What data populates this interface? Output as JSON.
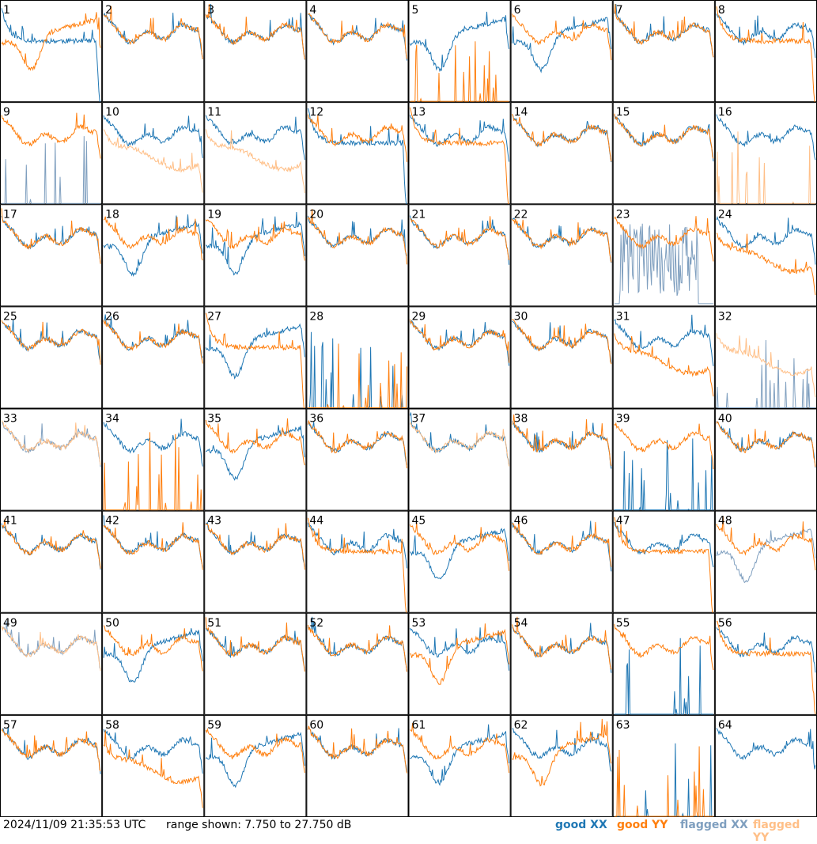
{
  "footer": {
    "timestamp": "2024/11/09 21:35:53 UTC",
    "range_text": "range shown: 7.750 to 27.750 dB"
  },
  "legend": [
    {
      "key": "good_xx",
      "label": "good XX",
      "color": "#1f77b4"
    },
    {
      "key": "good_yy",
      "label": "good YY",
      "color": "#ff7f0e"
    },
    {
      "key": "flagged_xx",
      "label": "flagged XX",
      "color": "#7f9fbf"
    },
    {
      "key": "flagged_yy",
      "label": "flagged YY",
      "color": "#ffbf87"
    }
  ],
  "chart_data": {
    "type": "line",
    "title": "",
    "xlabel": "",
    "ylabel": "",
    "ylim": [
      7.75,
      27.75
    ],
    "y_unit": "dB",
    "grid_rows": 8,
    "grid_cols": 8,
    "panels": [
      {
        "label": "1",
        "xx": {
          "shape": "flat_high",
          "flag": false
        },
        "yy": {
          "shape": "low_dip",
          "flag": false
        }
      },
      {
        "label": "2",
        "xx": {
          "shape": "standard",
          "flag": false
        },
        "yy": {
          "shape": "standard",
          "flag": false
        }
      },
      {
        "label": "3",
        "xx": {
          "shape": "standard",
          "flag": false
        },
        "yy": {
          "shape": "standard",
          "flag": false
        }
      },
      {
        "label": "4",
        "xx": {
          "shape": "standard",
          "flag": false
        },
        "yy": {
          "shape": "standard",
          "flag": false
        }
      },
      {
        "label": "5",
        "xx": {
          "shape": "low_dip",
          "flag": false
        },
        "yy": {
          "shape": "spiky_dead",
          "flag": false
        }
      },
      {
        "label": "6",
        "xx": {
          "shape": "low_dip",
          "flag": false
        },
        "yy": {
          "shape": "standard",
          "flag": false
        }
      },
      {
        "label": "7",
        "xx": {
          "shape": "standard",
          "flag": false
        },
        "yy": {
          "shape": "standard",
          "flag": false
        }
      },
      {
        "label": "8",
        "xx": {
          "shape": "standard",
          "flag": false
        },
        "yy": {
          "shape": "flat_high",
          "flag": false
        }
      },
      {
        "label": "9",
        "xx": {
          "shape": "spiky_dead",
          "flag": true
        },
        "yy": {
          "shape": "standard",
          "flag": false
        }
      },
      {
        "label": "10",
        "xx": {
          "shape": "standard",
          "flag": false
        },
        "yy": {
          "shape": "low_flat",
          "flag": true
        }
      },
      {
        "label": "11",
        "xx": {
          "shape": "standard",
          "flag": false
        },
        "yy": {
          "shape": "low_flat",
          "flag": true
        }
      },
      {
        "label": "12",
        "xx": {
          "shape": "flat_high",
          "flag": false
        },
        "yy": {
          "shape": "standard",
          "flag": false
        }
      },
      {
        "label": "13",
        "xx": {
          "shape": "standard",
          "flag": false
        },
        "yy": {
          "shape": "flat_high",
          "flag": false
        }
      },
      {
        "label": "14",
        "xx": {
          "shape": "standard",
          "flag": false
        },
        "yy": {
          "shape": "standard",
          "flag": false
        }
      },
      {
        "label": "15",
        "xx": {
          "shape": "standard",
          "flag": false
        },
        "yy": {
          "shape": "standard",
          "flag": false
        }
      },
      {
        "label": "16",
        "xx": {
          "shape": "standard",
          "flag": false
        },
        "yy": {
          "shape": "spiky_dead",
          "flag": true
        }
      },
      {
        "label": "17",
        "xx": {
          "shape": "standard",
          "flag": false
        },
        "yy": {
          "shape": "standard",
          "flag": false
        }
      },
      {
        "label": "18",
        "xx": {
          "shape": "low_dip",
          "flag": false
        },
        "yy": {
          "shape": "standard",
          "flag": false
        }
      },
      {
        "label": "19",
        "xx": {
          "shape": "low_dip",
          "flag": false
        },
        "yy": {
          "shape": "standard",
          "flag": false
        }
      },
      {
        "label": "20",
        "xx": {
          "shape": "standard",
          "flag": false
        },
        "yy": {
          "shape": "standard",
          "flag": false
        }
      },
      {
        "label": "21",
        "xx": {
          "shape": "standard",
          "flag": false
        },
        "yy": {
          "shape": "standard",
          "flag": false
        }
      },
      {
        "label": "22",
        "xx": {
          "shape": "standard",
          "flag": false
        },
        "yy": {
          "shape": "standard",
          "flag": false
        }
      },
      {
        "label": "23",
        "xx": {
          "shape": "noisy_block",
          "flag": true
        },
        "yy": {
          "shape": "standard",
          "flag": false
        }
      },
      {
        "label": "24",
        "xx": {
          "shape": "standard",
          "flag": false
        },
        "yy": {
          "shape": "low_flat",
          "flag": false
        }
      },
      {
        "label": "25",
        "xx": {
          "shape": "standard",
          "flag": false
        },
        "yy": {
          "shape": "standard",
          "flag": false
        }
      },
      {
        "label": "26",
        "xx": {
          "shape": "standard",
          "flag": false
        },
        "yy": {
          "shape": "standard",
          "flag": false
        }
      },
      {
        "label": "27",
        "xx": {
          "shape": "low_dip",
          "flag": false
        },
        "yy": {
          "shape": "flat_high",
          "flag": false
        }
      },
      {
        "label": "28",
        "xx": {
          "shape": "spiky_dead",
          "flag": false
        },
        "yy": {
          "shape": "spiky_dead",
          "flag": false
        }
      },
      {
        "label": "29",
        "xx": {
          "shape": "standard",
          "flag": false
        },
        "yy": {
          "shape": "standard",
          "flag": false
        }
      },
      {
        "label": "30",
        "xx": {
          "shape": "standard",
          "flag": false
        },
        "yy": {
          "shape": "standard",
          "flag": false
        }
      },
      {
        "label": "31",
        "xx": {
          "shape": "standard",
          "flag": false
        },
        "yy": {
          "shape": "low_flat",
          "flag": false
        }
      },
      {
        "label": "32",
        "xx": {
          "shape": "spiky_dead",
          "flag": true
        },
        "yy": {
          "shape": "low_flat",
          "flag": true
        }
      },
      {
        "label": "33",
        "xx": {
          "shape": "standard",
          "flag": true
        },
        "yy": {
          "shape": "standard",
          "flag": true
        }
      },
      {
        "label": "34",
        "xx": {
          "shape": "standard",
          "flag": false
        },
        "yy": {
          "shape": "spiky_dead",
          "flag": false
        }
      },
      {
        "label": "35",
        "xx": {
          "shape": "low_dip",
          "flag": false
        },
        "yy": {
          "shape": "standard",
          "flag": false
        }
      },
      {
        "label": "36",
        "xx": {
          "shape": "standard",
          "flag": false
        },
        "yy": {
          "shape": "standard",
          "flag": false
        }
      },
      {
        "label": "37",
        "xx": {
          "shape": "standard",
          "flag": false
        },
        "yy": {
          "shape": "standard",
          "flag": true
        }
      },
      {
        "label": "38",
        "xx": {
          "shape": "standard",
          "flag": false
        },
        "yy": {
          "shape": "standard",
          "flag": false
        }
      },
      {
        "label": "39",
        "xx": {
          "shape": "spiky_dead",
          "flag": false
        },
        "yy": {
          "shape": "standard",
          "flag": false
        }
      },
      {
        "label": "40",
        "xx": {
          "shape": "standard",
          "flag": false
        },
        "yy": {
          "shape": "standard",
          "flag": false
        }
      },
      {
        "label": "41",
        "xx": {
          "shape": "standard",
          "flag": false
        },
        "yy": {
          "shape": "standard",
          "flag": false
        }
      },
      {
        "label": "42",
        "xx": {
          "shape": "standard",
          "flag": false
        },
        "yy": {
          "shape": "standard",
          "flag": false
        }
      },
      {
        "label": "43",
        "xx": {
          "shape": "standard",
          "flag": false
        },
        "yy": {
          "shape": "standard",
          "flag": false
        }
      },
      {
        "label": "44",
        "xx": {
          "shape": "standard",
          "flag": false
        },
        "yy": {
          "shape": "flat_high",
          "flag": false
        }
      },
      {
        "label": "45",
        "xx": {
          "shape": "low_dip",
          "flag": false
        },
        "yy": {
          "shape": "standard",
          "flag": false
        }
      },
      {
        "label": "46",
        "xx": {
          "shape": "standard",
          "flag": false
        },
        "yy": {
          "shape": "standard",
          "flag": false
        }
      },
      {
        "label": "47",
        "xx": {
          "shape": "standard",
          "flag": false
        },
        "yy": {
          "shape": "flat_high",
          "flag": false
        }
      },
      {
        "label": "48",
        "xx": {
          "shape": "low_dip",
          "flag": true
        },
        "yy": {
          "shape": "standard",
          "flag": false
        }
      },
      {
        "label": "49",
        "xx": {
          "shape": "standard",
          "flag": true
        },
        "yy": {
          "shape": "standard",
          "flag": true
        }
      },
      {
        "label": "50",
        "xx": {
          "shape": "low_dip",
          "flag": false
        },
        "yy": {
          "shape": "standard",
          "flag": false
        }
      },
      {
        "label": "51",
        "xx": {
          "shape": "standard",
          "flag": false
        },
        "yy": {
          "shape": "standard",
          "flag": false
        }
      },
      {
        "label": "52",
        "xx": {
          "shape": "standard",
          "flag": false
        },
        "yy": {
          "shape": "standard",
          "flag": false
        }
      },
      {
        "label": "53",
        "xx": {
          "shape": "standard",
          "flag": false
        },
        "yy": {
          "shape": "low_dip",
          "flag": false
        }
      },
      {
        "label": "54",
        "xx": {
          "shape": "standard",
          "flag": false
        },
        "yy": {
          "shape": "standard",
          "flag": false
        }
      },
      {
        "label": "55",
        "xx": {
          "shape": "spiky_dead",
          "flag": false
        },
        "yy": {
          "shape": "standard",
          "flag": false
        }
      },
      {
        "label": "56",
        "xx": {
          "shape": "standard",
          "flag": false
        },
        "yy": {
          "shape": "flat_high",
          "flag": false
        }
      },
      {
        "label": "57",
        "xx": {
          "shape": "standard",
          "flag": false
        },
        "yy": {
          "shape": "standard",
          "flag": false
        }
      },
      {
        "label": "58",
        "xx": {
          "shape": "standard",
          "flag": false
        },
        "yy": {
          "shape": "low_flat",
          "flag": false
        }
      },
      {
        "label": "59",
        "xx": {
          "shape": "low_dip",
          "flag": false
        },
        "yy": {
          "shape": "standard",
          "flag": false
        }
      },
      {
        "label": "60",
        "xx": {
          "shape": "standard",
          "flag": false
        },
        "yy": {
          "shape": "standard",
          "flag": false
        }
      },
      {
        "label": "61",
        "xx": {
          "shape": "low_dip",
          "flag": false
        },
        "yy": {
          "shape": "standard",
          "flag": false
        }
      },
      {
        "label": "62",
        "xx": {
          "shape": "standard",
          "flag": false
        },
        "yy": {
          "shape": "low_dip",
          "flag": false
        }
      },
      {
        "label": "63",
        "xx": {
          "shape": "spiky_dead",
          "flag": false
        },
        "yy": {
          "shape": "spiky_dead",
          "flag": false
        }
      },
      {
        "label": "64",
        "xx": {
          "shape": "standard",
          "flag": false
        },
        "yy": {
          "shape": "none",
          "flag": false
        }
      }
    ]
  }
}
